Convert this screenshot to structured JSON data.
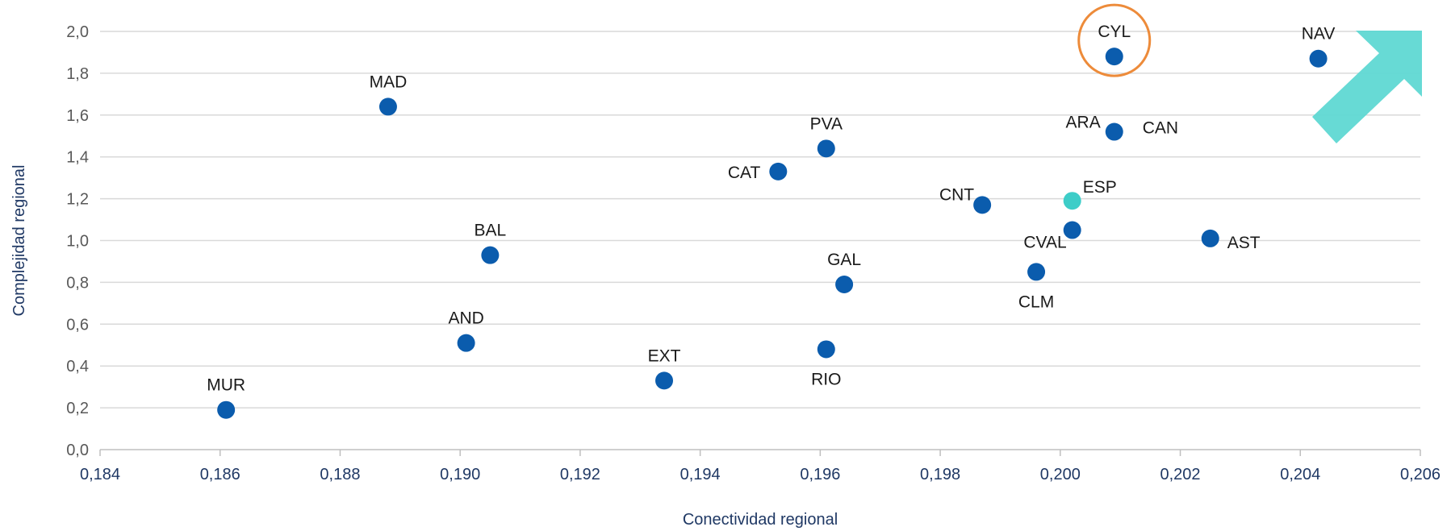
{
  "chart_data": {
    "type": "scatter",
    "xlabel": "Conectividad  regional",
    "ylabel": "Complejidad  regional",
    "xlim": [
      0.184,
      0.206
    ],
    "ylim": [
      0.0,
      2.0
    ],
    "x_ticks": [
      "0,184",
      "0,186",
      "0,188",
      "0,190",
      "0,192",
      "0,194",
      "0,196",
      "0,198",
      "0,200",
      "0,202",
      "0,204",
      "0,206"
    ],
    "y_ticks": [
      "0,0",
      "0,2",
      "0,4",
      "0,6",
      "0,8",
      "1,0",
      "1,2",
      "1,4",
      "1,6",
      "1,8",
      "2,0"
    ],
    "grid": "horizontal",
    "colors": {
      "point": "#0b5cad",
      "highlight": "#3dcdc8",
      "circle": "#ed8b3a",
      "arrow": "#5fd8d3",
      "grid": "#d9d9d9",
      "axis_text": "#1f3864"
    },
    "points": [
      {
        "label": "MUR",
        "x": 0.1861,
        "y": 0.19,
        "label_pos": "above"
      },
      {
        "label": "MAD",
        "x": 0.1888,
        "y": 1.64,
        "label_pos": "above"
      },
      {
        "label": "AND",
        "x": 0.1901,
        "y": 0.51,
        "label_pos": "above"
      },
      {
        "label": "BAL",
        "x": 0.1905,
        "y": 0.93,
        "label_pos": "above"
      },
      {
        "label": "EXT",
        "x": 0.1934,
        "y": 0.33,
        "label_pos": "above"
      },
      {
        "label": "CAT",
        "x": 0.1953,
        "y": 1.33,
        "label_pos": "left"
      },
      {
        "label": "PVA",
        "x": 0.1961,
        "y": 1.44,
        "label_pos": "above"
      },
      {
        "label": "RIO",
        "x": 0.1961,
        "y": 0.48,
        "label_pos": "below"
      },
      {
        "label": "GAL",
        "x": 0.1964,
        "y": 0.79,
        "label_pos": "above"
      },
      {
        "label": "CNT",
        "x": 0.1987,
        "y": 1.17,
        "label_pos": "upper-left"
      },
      {
        "label": "CLM",
        "x": 0.1996,
        "y": 0.85,
        "label_pos": "below"
      },
      {
        "label": "CVAL",
        "x": 0.2002,
        "y": 1.05,
        "label_pos": "lower-left"
      },
      {
        "label": "ESP",
        "x": 0.2002,
        "y": 1.19,
        "label_pos": "upper-right",
        "highlight": true
      },
      {
        "label": "ARA",
        "x": 0.2009,
        "y": 1.52,
        "label_pos": "upper-left"
      },
      {
        "label": "CAN",
        "x": 0.2009,
        "y": 1.52,
        "label_pos": "upper-right",
        "label_only": true
      },
      {
        "label": "CYL",
        "x": 0.2009,
        "y": 1.88,
        "label_pos": "above",
        "circled": true
      },
      {
        "label": "AST",
        "x": 0.2025,
        "y": 1.01,
        "label_pos": "right"
      },
      {
        "label": "NAV",
        "x": 0.2043,
        "y": 1.87,
        "label_pos": "above"
      }
    ]
  }
}
